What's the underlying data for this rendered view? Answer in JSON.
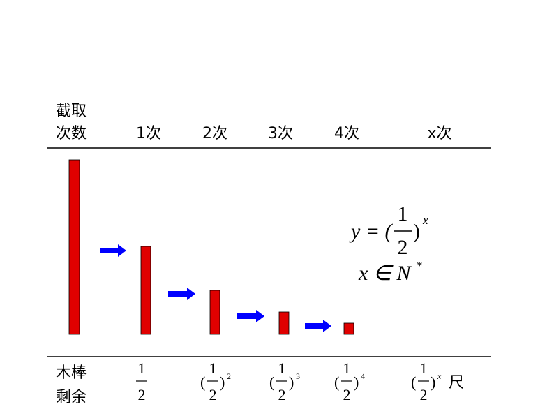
{
  "header": {
    "label": [
      "截取",
      "次数"
    ],
    "columns": [
      "1次",
      "2次",
      "3次",
      "4次",
      "x次"
    ]
  },
  "remainder": {
    "label": [
      "木棒",
      "剩余"
    ],
    "cells": [
      {
        "numerator": "1",
        "denominator": "2"
      },
      {
        "open": "(",
        "numerator": "1",
        "denominator": "2",
        "close": ")",
        "exponent": "2"
      },
      {
        "open": "(",
        "numerator": "1",
        "denominator": "2",
        "close": ")",
        "exponent": "3"
      },
      {
        "open": "(",
        "numerator": "1",
        "denominator": "2",
        "close": ")",
        "exponent": "4"
      },
      {
        "open": "(",
        "numerator": "1",
        "denominator": "2",
        "close": ")",
        "exponent": "x",
        "unit": "尺"
      }
    ]
  },
  "formula": {
    "lhs": "y = (",
    "numerator": "1",
    "denominator": "2",
    "close": ")",
    "exponent": "x",
    "domain": "x ∈ N",
    "domain_sup": "*"
  }
}
